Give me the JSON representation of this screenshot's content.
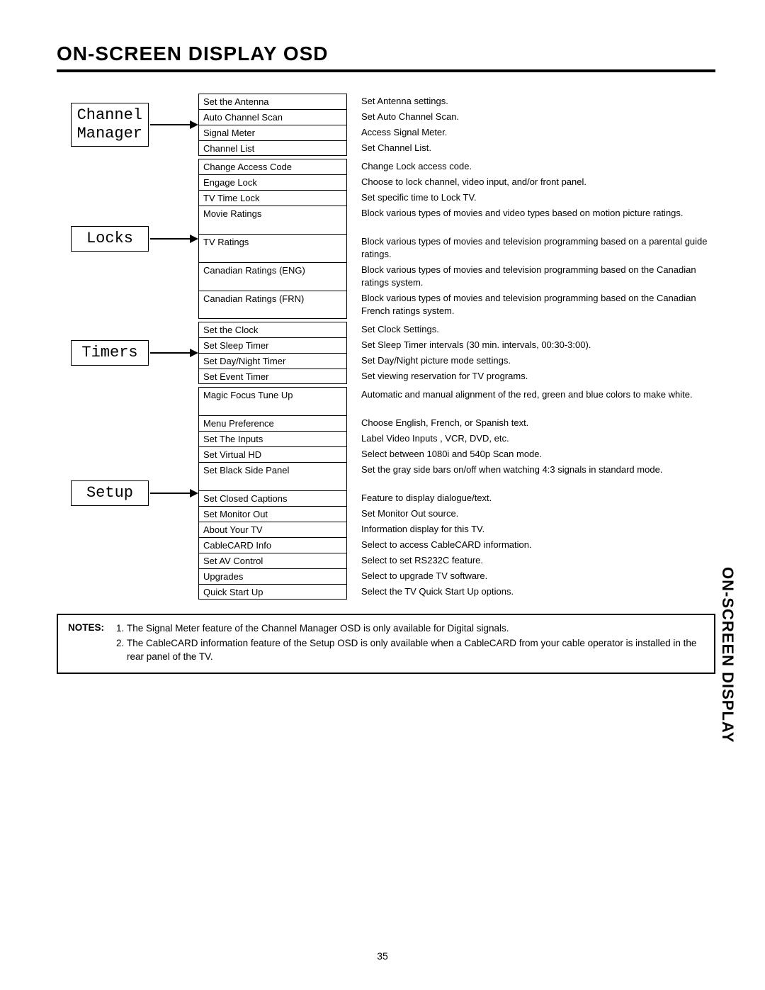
{
  "title": "ON-SCREEN DISPLAY OSD",
  "side_tab": "ON-SCREEN DISPLAY",
  "page_number": "35",
  "colors": {
    "text": "#000000",
    "background": "#ffffff",
    "border": "#000000"
  },
  "typography": {
    "title_fontsize_pt": 21,
    "menu_fontsize_pt": 16,
    "item_fontsize_pt": 10,
    "notes_fontsize_pt": 10,
    "side_tab_fontsize_pt": 16
  },
  "sections": [
    {
      "label": "Channel\nManager",
      "box_lines": [
        "Channel",
        "Manager"
      ],
      "items": [
        {
          "name": "Set the Antenna",
          "desc": "Set Antenna settings."
        },
        {
          "name": "Auto Channel Scan",
          "desc": "Set Auto Channel Scan."
        },
        {
          "name": "Signal Meter",
          "desc": "Access Signal Meter."
        },
        {
          "name": "Channel List",
          "desc": "Set Channel List."
        }
      ]
    },
    {
      "label": "Locks",
      "box_lines": [
        "Locks"
      ],
      "items": [
        {
          "name": "Change Access Code",
          "desc": "Change Lock access code."
        },
        {
          "name": "Engage Lock",
          "desc": "Choose to lock channel, video input, and/or front panel."
        },
        {
          "name": "TV Time Lock",
          "desc": "Set specific time to Lock TV."
        },
        {
          "name": "Movie Ratings",
          "desc": "Block various types of movies and video types based on motion picture ratings."
        },
        {
          "name": "TV Ratings",
          "desc": "Block various types of movies and television programming based on a parental guide ratings."
        },
        {
          "name": "Canadian Ratings (ENG)",
          "desc": "Block various types of movies and television programming based on the Canadian ratings system."
        },
        {
          "name": "Canadian Ratings (FRN)",
          "desc": "Block various types of movies and television programming based on the Canadian French ratings system."
        }
      ]
    },
    {
      "label": "Timers",
      "box_lines": [
        "Timers"
      ],
      "items": [
        {
          "name": "Set the Clock",
          "desc": "Set Clock Settings."
        },
        {
          "name": "Set Sleep Timer",
          "desc": "Set Sleep Timer intervals (30 min. intervals, 00:30-3:00)."
        },
        {
          "name": "Set Day/Night Timer",
          "desc": "Set Day/Night picture mode settings."
        },
        {
          "name": "Set Event Timer",
          "desc": "Set viewing reservation for TV programs."
        }
      ]
    },
    {
      "label": "Setup",
      "box_lines": [
        "Setup"
      ],
      "items": [
        {
          "name": "Magic Focus Tune Up",
          "desc": "Automatic and manual alignment of the red, green and blue colors to make white."
        },
        {
          "name": "Menu Preference",
          "desc": "Choose English, French, or Spanish text."
        },
        {
          "name": "Set The Inputs",
          "desc": "Label Video Inputs , VCR, DVD, etc."
        },
        {
          "name": "Set Virtual HD",
          "desc": "Select between 1080i and 540p Scan mode."
        },
        {
          "name": "Set Black Side Panel",
          "desc": "Set the gray side bars on/off when watching 4:3 signals in standard mode."
        },
        {
          "name": "Set Closed Captions",
          "desc": "Feature to display dialogue/text."
        },
        {
          "name": "Set Monitor Out",
          "desc": "Set Monitor Out source."
        },
        {
          "name": "About Your TV",
          "desc": "Information display for this TV."
        },
        {
          "name": "CableCARD Info",
          "desc": "Select to access CableCARD information."
        },
        {
          "name": "Set AV Control",
          "desc": "Select to set RS232C feature."
        },
        {
          "name": "Upgrades",
          "desc": "Select to upgrade TV software."
        },
        {
          "name": "Quick Start Up",
          "desc": "Select the TV Quick Start Up options."
        }
      ]
    }
  ],
  "notes": {
    "label": "NOTES:",
    "items": [
      "The Signal Meter feature of the Channel Manager OSD is only available for Digital signals.",
      "The CableCARD information feature of the Setup OSD is only available when a CableCARD from your cable operator is installed in the rear panel of the TV."
    ]
  }
}
